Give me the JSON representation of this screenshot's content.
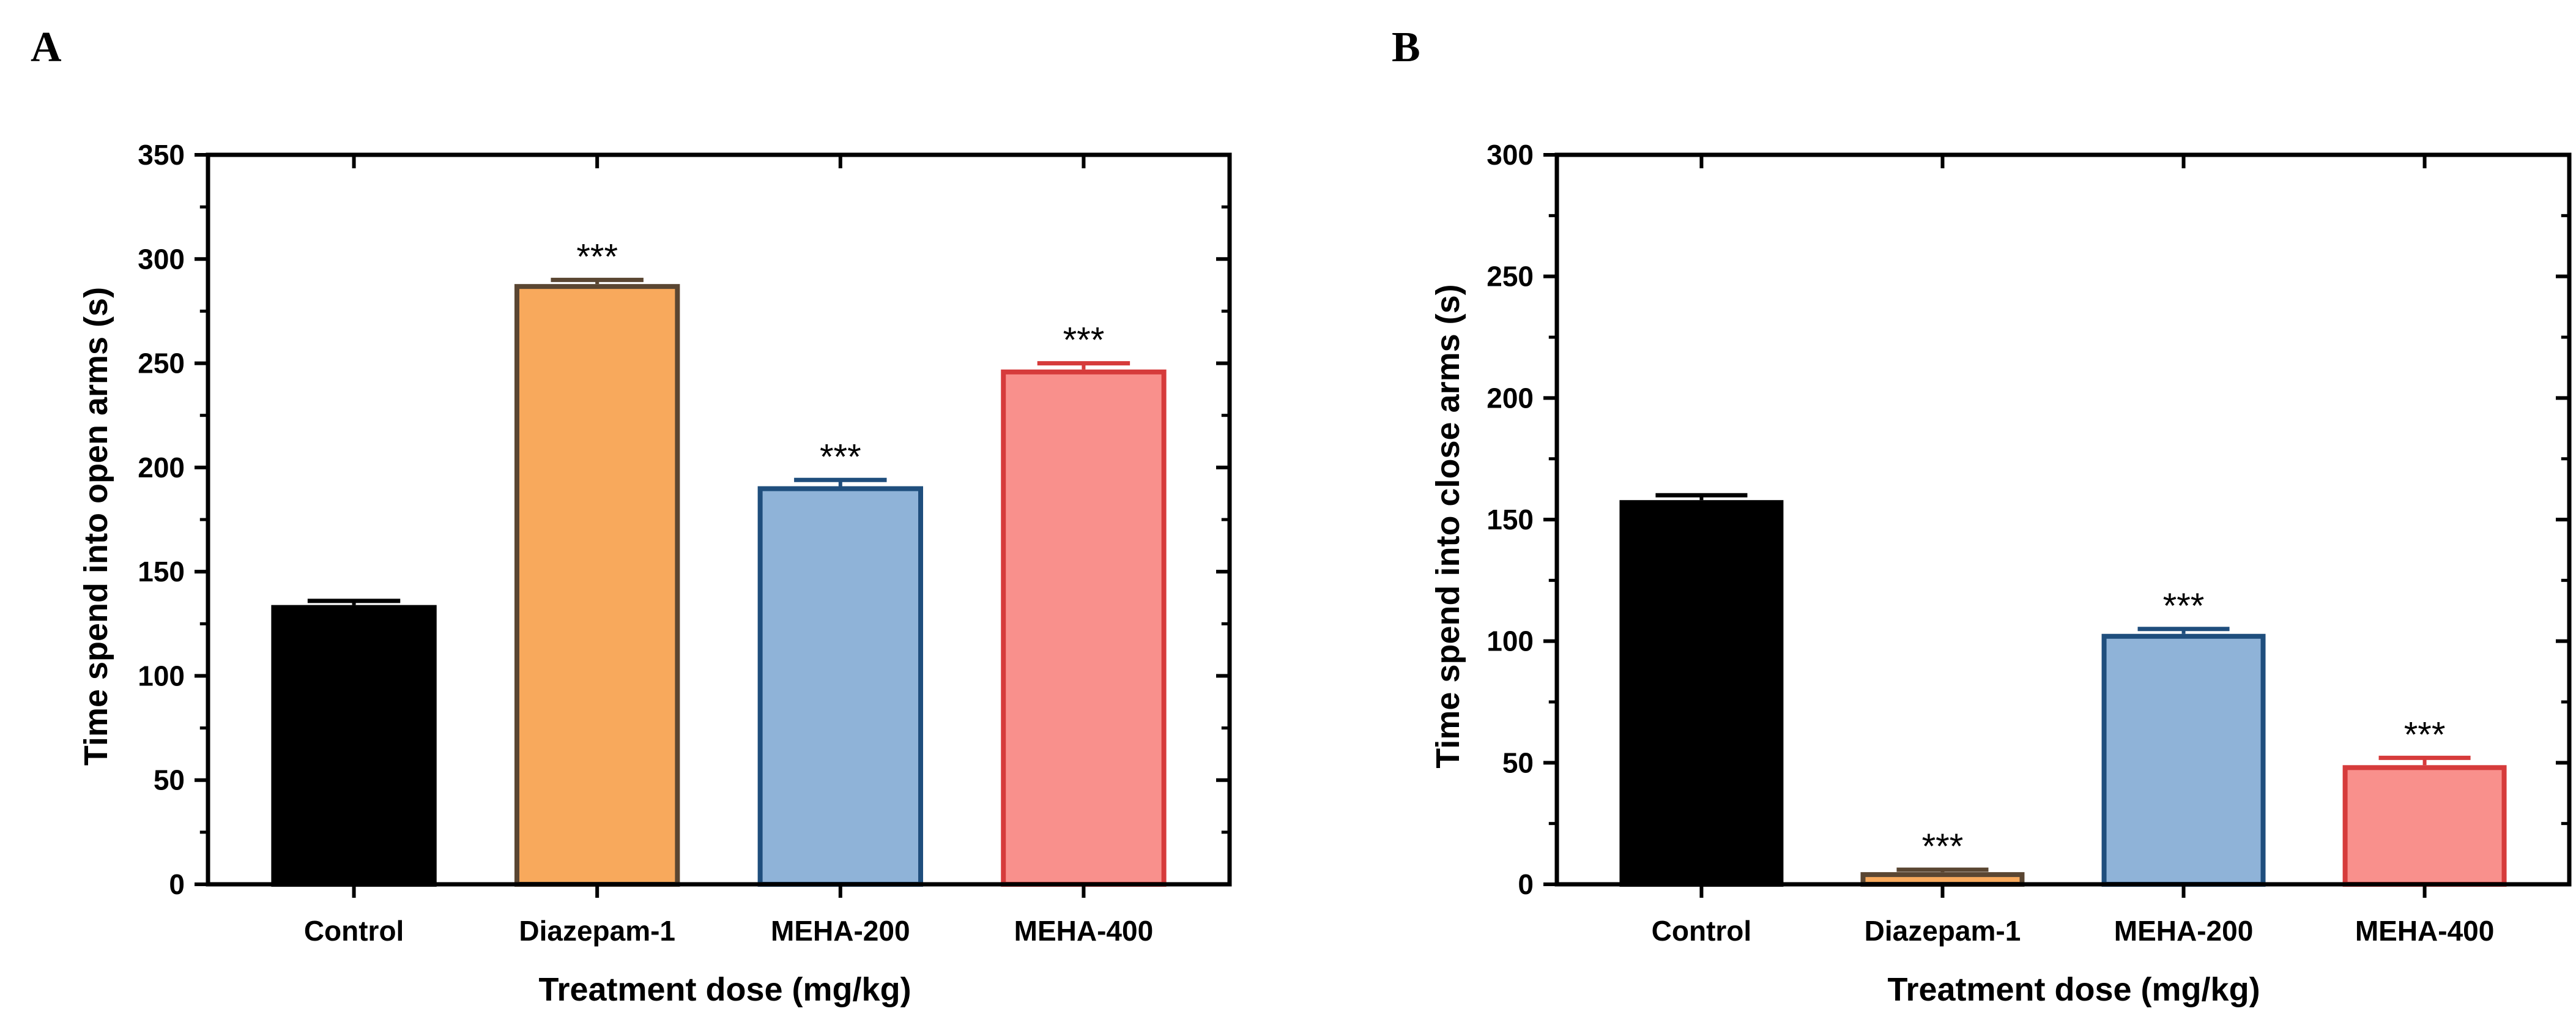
{
  "chart_data": [
    {
      "panel": "A",
      "type": "bar",
      "title": "",
      "xlabel": "Treatment dose (mg/kg)",
      "ylabel": "Time spend into open arms (s)",
      "ylim": [
        0,
        350
      ],
      "yticks": [
        0,
        50,
        100,
        150,
        200,
        250,
        300,
        350
      ],
      "categories": [
        "Control",
        "Diazepam-1",
        "MEHA-200",
        "MEHA-400"
      ],
      "values": [
        134,
        288,
        191,
        247
      ],
      "errors": [
        2,
        2,
        3,
        3
      ],
      "significance": [
        "",
        "***",
        "***",
        "***"
      ],
      "fill_colors": [
        "#000000",
        "#F8A95C",
        "#8FB3D8",
        "#F9908C"
      ],
      "edge_colors": [
        "#000000",
        "#5A4632",
        "#1F4E7D",
        "#D63B3B"
      ],
      "grid": false
    },
    {
      "panel": "B",
      "type": "bar",
      "title": "",
      "xlabel": "Treatment dose (mg/kg)",
      "ylabel": "Time spend into close arms (s)",
      "ylim": [
        0,
        300
      ],
      "yticks": [
        0,
        50,
        100,
        150,
        200,
        250,
        300
      ],
      "categories": [
        "Control",
        "Diazepam-1",
        "MEHA-200",
        "MEHA-400"
      ],
      "values": [
        158,
        5,
        103,
        49
      ],
      "errors": [
        2,
        1,
        2,
        3
      ],
      "significance": [
        "",
        "***",
        "***",
        "***"
      ],
      "fill_colors": [
        "#000000",
        "#F8A95C",
        "#8FB3D8",
        "#F9908C"
      ],
      "edge_colors": [
        "#000000",
        "#5A4632",
        "#1F4E7D",
        "#D63B3B"
      ],
      "grid": false
    }
  ]
}
